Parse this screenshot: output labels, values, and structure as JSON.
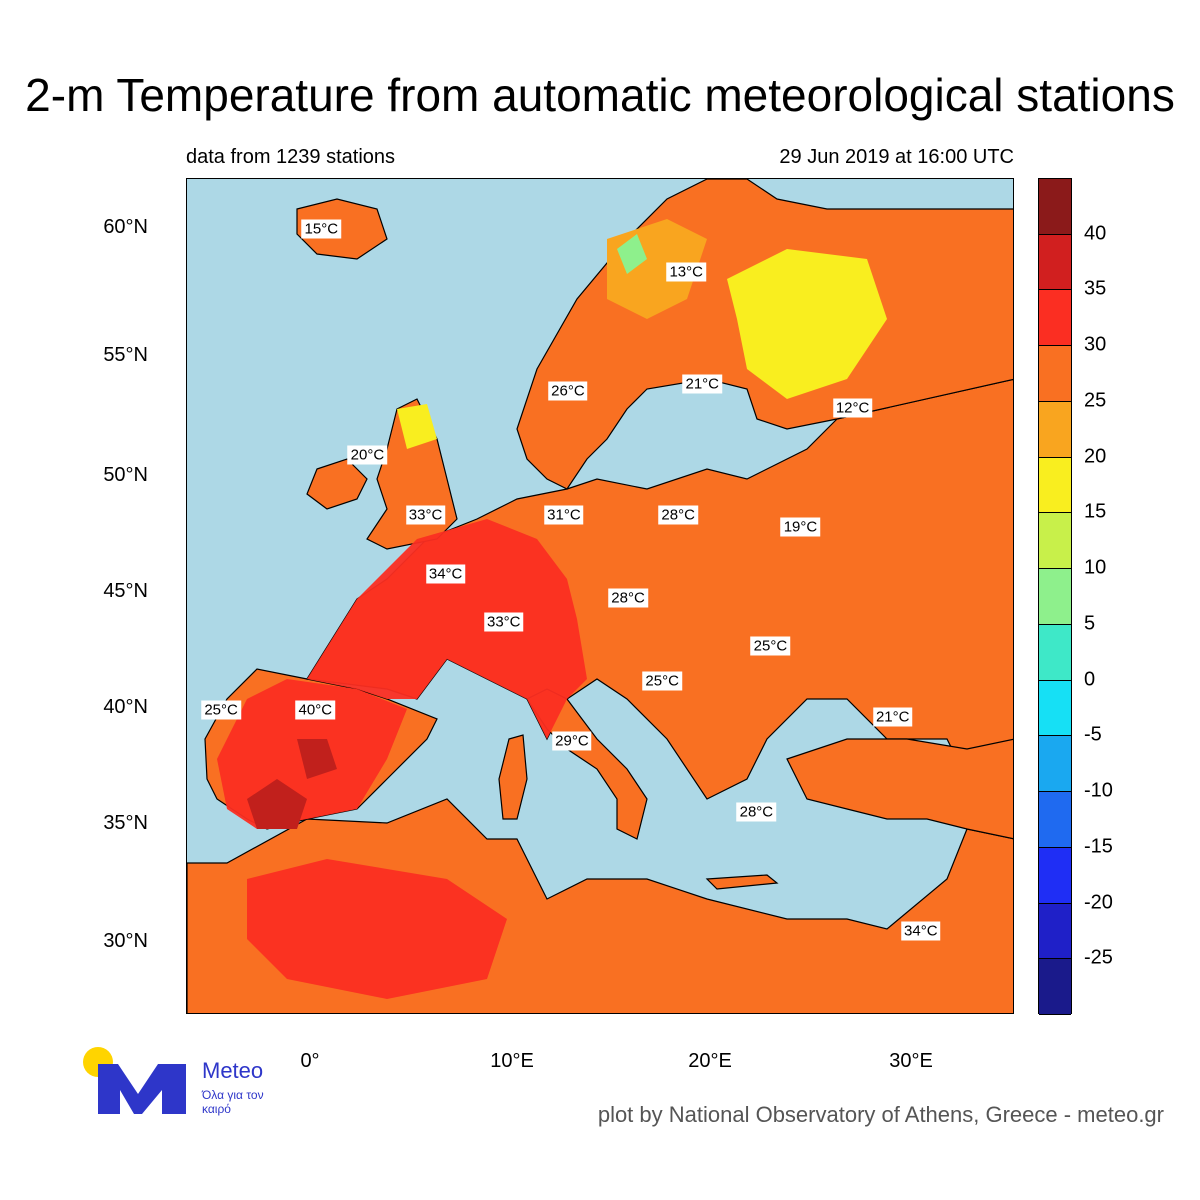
{
  "title": "2-m Temperature from automatic meteorological stations",
  "subtitle_left": "data from 1239 stations",
  "subtitle_right": "29 Jun 2019 at 16:00 UTC",
  "latitude_labels": [
    "60°N",
    "55°N",
    "50°N",
    "45°N",
    "40°N",
    "35°N",
    "30°N"
  ],
  "longitude_labels": [
    "0°",
    "10°E",
    "20°E",
    "30°E"
  ],
  "colorbar": {
    "labels": [
      "40",
      "35",
      "30",
      "25",
      "20",
      "15",
      "10",
      "5",
      "0",
      "-5",
      "-10",
      "-15",
      "-20",
      "-25"
    ],
    "colors": [
      "#8b1a1a",
      "#d11f1f",
      "#fb2e22",
      "#f97022",
      "#f9a51f",
      "#f9ee1f",
      "#c8f04a",
      "#8ef08c",
      "#3ee8c8",
      "#16e0f5",
      "#1aa8f0",
      "#1f6af0",
      "#1f2ef5",
      "#1f20c8",
      "#1a1a8b"
    ]
  },
  "station_labels": [
    {
      "text": "15°C",
      "temp": 15,
      "lat": 60,
      "lon": 0.5
    },
    {
      "text": "13°C",
      "temp": 13,
      "lat": 58.2,
      "lon": 18.7
    },
    {
      "text": "26°C",
      "temp": 26,
      "lat": 53.2,
      "lon": 12.8
    },
    {
      "text": "21°C",
      "temp": 21,
      "lat": 53.5,
      "lon": 19.5
    },
    {
      "text": "12°C",
      "temp": 12,
      "lat": 52.5,
      "lon": 27
    },
    {
      "text": "20°C",
      "temp": 20,
      "lat": 50.5,
      "lon": 2.8
    },
    {
      "text": "33°C",
      "temp": 33,
      "lat": 48,
      "lon": 5.7
    },
    {
      "text": "31°C",
      "temp": 31,
      "lat": 48,
      "lon": 12.6
    },
    {
      "text": "28°C",
      "temp": 28,
      "lat": 48,
      "lon": 18.3
    },
    {
      "text": "19°C",
      "temp": 19,
      "lat": 47.5,
      "lon": 24.4
    },
    {
      "text": "34°C",
      "temp": 34,
      "lat": 45.5,
      "lon": 6.7
    },
    {
      "text": "28°C",
      "temp": 28,
      "lat": 44.5,
      "lon": 15.8
    },
    {
      "text": "33°C",
      "temp": 33,
      "lat": 43.5,
      "lon": 9.6
    },
    {
      "text": "25°C",
      "temp": 25,
      "lat": 42.5,
      "lon": 22.9
    },
    {
      "text": "25°C",
      "temp": 25,
      "lat": 41,
      "lon": 17.5
    },
    {
      "text": "40°C",
      "temp": 40,
      "lat": 39.8,
      "lon": 0.2
    },
    {
      "text": "25°C",
      "temp": 25,
      "lat": 39.8,
      "lon": -4.5
    },
    {
      "text": "29°C",
      "temp": 29,
      "lat": 38.5,
      "lon": 13
    },
    {
      "text": "21°C",
      "temp": 21,
      "lat": 39.5,
      "lon": 29
    },
    {
      "text": "28°C",
      "temp": 28,
      "lat": 35.5,
      "lon": 22.2
    },
    {
      "text": "34°C",
      "temp": 34,
      "lat": 30.5,
      "lon": 30.4
    }
  ],
  "logo": {
    "name": "Meteo",
    "tagline": "Όλα για τον καιρό",
    "brand_color": "#2e36c9",
    "sun_color": "#ffd400"
  },
  "credit": "plot by National Observatory of Athens, Greece - meteo.gr"
}
